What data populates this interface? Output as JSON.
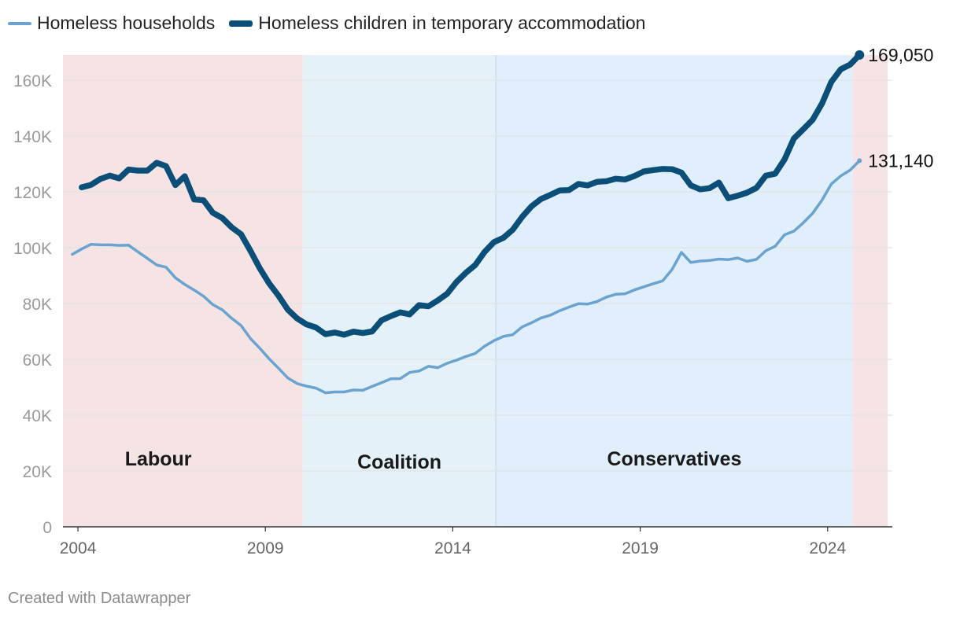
{
  "colors": {
    "households": "#6aa3cf",
    "children": "#0b4f79",
    "labour_band": "#f6e4e4",
    "coalition_band": "#e4f1f8",
    "conservative_band": "#e1eefb",
    "grid": "#e3e3e3",
    "axis": "#333333",
    "tick": "#9a9a9a"
  },
  "legend": [
    {
      "label": "Homeless households",
      "series": "households"
    },
    {
      "label": "Homeless children in temporary accommodation",
      "series": "children"
    }
  ],
  "credit": "Created with Datawrapper",
  "chart_data": {
    "type": "line",
    "title": "",
    "xlabel": "",
    "ylabel": "",
    "xlim": [
      2003.6,
      2025.6
    ],
    "ylim": [
      0,
      169000
    ],
    "x_ticks": [
      2004,
      2009,
      2014,
      2019,
      2024
    ],
    "x_tick_labels": [
      "2004",
      "2009",
      "2014",
      "2019",
      "2024"
    ],
    "y_ticks": [
      0,
      20000,
      40000,
      60000,
      80000,
      100000,
      120000,
      140000,
      160000
    ],
    "y_tick_labels": [
      "0",
      "20K",
      "40K",
      "60K",
      "80K",
      "100K",
      "120K",
      "140K",
      "160K"
    ],
    "periods": [
      {
        "label": "Labour",
        "start": 2003.6,
        "end": 2010.0
      },
      {
        "label": "Coalition",
        "start": 2010.0,
        "end": 2015.15
      },
      {
        "label": "Conservatives",
        "start": 2015.15,
        "end": 2024.67
      },
      {
        "label": "",
        "start": 2024.67,
        "end": 2025.6
      }
    ],
    "series": [
      {
        "name": "Homeless households",
        "key": "households",
        "end_label": "131,140",
        "points": [
          [
            2003.85,
            97600
          ],
          [
            2004.1,
            99500
          ],
          [
            2004.35,
            101200
          ],
          [
            2004.6,
            101000
          ],
          [
            2004.85,
            101000
          ],
          [
            2005.1,
            100800
          ],
          [
            2005.35,
            100900
          ],
          [
            2005.6,
            98500
          ],
          [
            2005.85,
            96200
          ],
          [
            2006.1,
            93800
          ],
          [
            2006.35,
            93000
          ],
          [
            2006.6,
            89200
          ],
          [
            2006.85,
            86800
          ],
          [
            2007.1,
            84800
          ],
          [
            2007.35,
            82600
          ],
          [
            2007.6,
            79600
          ],
          [
            2007.85,
            77700
          ],
          [
            2008.1,
            74700
          ],
          [
            2008.35,
            72100
          ],
          [
            2008.6,
            67500
          ],
          [
            2008.85,
            64000
          ],
          [
            2009.1,
            60200
          ],
          [
            2009.35,
            56800
          ],
          [
            2009.6,
            53300
          ],
          [
            2009.85,
            51300
          ],
          [
            2010.1,
            50400
          ],
          [
            2010.35,
            49700
          ],
          [
            2010.6,
            48000
          ],
          [
            2010.85,
            48300
          ],
          [
            2011.1,
            48300
          ],
          [
            2011.35,
            49000
          ],
          [
            2011.6,
            48900
          ],
          [
            2011.85,
            50300
          ],
          [
            2012.1,
            51600
          ],
          [
            2012.35,
            53000
          ],
          [
            2012.6,
            53100
          ],
          [
            2012.85,
            55300
          ],
          [
            2013.1,
            55800
          ],
          [
            2013.35,
            57500
          ],
          [
            2013.6,
            57000
          ],
          [
            2013.85,
            58600
          ],
          [
            2014.1,
            59700
          ],
          [
            2014.35,
            61000
          ],
          [
            2014.6,
            62100
          ],
          [
            2014.85,
            64700
          ],
          [
            2015.1,
            66700
          ],
          [
            2015.35,
            68200
          ],
          [
            2015.6,
            68800
          ],
          [
            2015.85,
            71600
          ],
          [
            2016.1,
            73100
          ],
          [
            2016.35,
            74800
          ],
          [
            2016.6,
            75800
          ],
          [
            2016.85,
            77400
          ],
          [
            2017.1,
            78700
          ],
          [
            2017.35,
            79900
          ],
          [
            2017.6,
            79800
          ],
          [
            2017.85,
            80700
          ],
          [
            2018.1,
            82300
          ],
          [
            2018.35,
            83300
          ],
          [
            2018.6,
            83500
          ],
          [
            2018.85,
            84900
          ],
          [
            2019.1,
            86000
          ],
          [
            2019.35,
            87100
          ],
          [
            2019.6,
            88100
          ],
          [
            2019.85,
            92200
          ],
          [
            2020.1,
            98300
          ],
          [
            2020.35,
            94700
          ],
          [
            2020.6,
            95200
          ],
          [
            2020.85,
            95400
          ],
          [
            2021.1,
            95900
          ],
          [
            2021.35,
            95700
          ],
          [
            2021.6,
            96300
          ],
          [
            2021.85,
            95100
          ],
          [
            2022.1,
            95800
          ],
          [
            2022.35,
            98900
          ],
          [
            2022.6,
            100500
          ],
          [
            2022.85,
            104600
          ],
          [
            2023.1,
            105900
          ],
          [
            2023.35,
            108900
          ],
          [
            2023.6,
            112300
          ],
          [
            2023.85,
            117000
          ],
          [
            2024.1,
            122800
          ],
          [
            2024.35,
            125700
          ],
          [
            2024.6,
            127800
          ],
          [
            2024.85,
            131140
          ]
        ]
      },
      {
        "name": "Homeless children in temporary accommodation",
        "key": "children",
        "end_label": "169,050",
        "points": [
          [
            2004.1,
            121600
          ],
          [
            2004.35,
            122500
          ],
          [
            2004.6,
            124600
          ],
          [
            2004.85,
            125800
          ],
          [
            2005.1,
            124800
          ],
          [
            2005.35,
            128000
          ],
          [
            2005.6,
            127600
          ],
          [
            2005.85,
            127600
          ],
          [
            2006.1,
            130400
          ],
          [
            2006.35,
            129200
          ],
          [
            2006.6,
            122400
          ],
          [
            2006.85,
            125600
          ],
          [
            2007.1,
            117300
          ],
          [
            2007.35,
            117000
          ],
          [
            2007.6,
            112500
          ],
          [
            2007.85,
            110600
          ],
          [
            2008.1,
            107300
          ],
          [
            2008.35,
            104800
          ],
          [
            2008.6,
            98900
          ],
          [
            2008.85,
            92600
          ],
          [
            2009.1,
            87200
          ],
          [
            2009.35,
            82800
          ],
          [
            2009.6,
            77800
          ],
          [
            2009.85,
            74600
          ],
          [
            2010.1,
            72500
          ],
          [
            2010.35,
            71400
          ],
          [
            2010.6,
            69000
          ],
          [
            2010.85,
            69600
          ],
          [
            2011.1,
            68800
          ],
          [
            2011.35,
            69900
          ],
          [
            2011.6,
            69400
          ],
          [
            2011.85,
            70000
          ],
          [
            2012.1,
            74000
          ],
          [
            2012.35,
            75500
          ],
          [
            2012.6,
            76800
          ],
          [
            2012.85,
            76100
          ],
          [
            2013.1,
            79400
          ],
          [
            2013.35,
            79000
          ],
          [
            2013.6,
            81100
          ],
          [
            2013.85,
            83500
          ],
          [
            2014.1,
            87700
          ],
          [
            2014.35,
            91000
          ],
          [
            2014.6,
            93800
          ],
          [
            2014.85,
            98500
          ],
          [
            2015.1,
            102000
          ],
          [
            2015.35,
            103500
          ],
          [
            2015.6,
            106400
          ],
          [
            2015.85,
            111000
          ],
          [
            2016.1,
            114800
          ],
          [
            2016.35,
            117400
          ],
          [
            2016.6,
            118900
          ],
          [
            2016.85,
            120500
          ],
          [
            2017.1,
            120600
          ],
          [
            2017.35,
            122800
          ],
          [
            2017.6,
            122300
          ],
          [
            2017.85,
            123600
          ],
          [
            2018.1,
            123800
          ],
          [
            2018.35,
            124700
          ],
          [
            2018.6,
            124400
          ],
          [
            2018.85,
            125700
          ],
          [
            2019.1,
            127300
          ],
          [
            2019.35,
            127800
          ],
          [
            2019.6,
            128200
          ],
          [
            2019.85,
            128100
          ],
          [
            2020.1,
            126900
          ],
          [
            2020.35,
            122300
          ],
          [
            2020.6,
            120900
          ],
          [
            2020.85,
            121300
          ],
          [
            2021.1,
            123300
          ],
          [
            2021.35,
            117700
          ],
          [
            2021.6,
            118600
          ],
          [
            2021.85,
            119700
          ],
          [
            2022.1,
            121400
          ],
          [
            2022.35,
            125800
          ],
          [
            2022.6,
            126500
          ],
          [
            2022.85,
            131600
          ],
          [
            2023.1,
            139100
          ],
          [
            2023.35,
            142400
          ],
          [
            2023.6,
            145800
          ],
          [
            2023.85,
            151600
          ],
          [
            2024.1,
            159400
          ],
          [
            2024.35,
            163900
          ],
          [
            2024.6,
            165600
          ],
          [
            2024.85,
            169050
          ]
        ]
      }
    ]
  }
}
